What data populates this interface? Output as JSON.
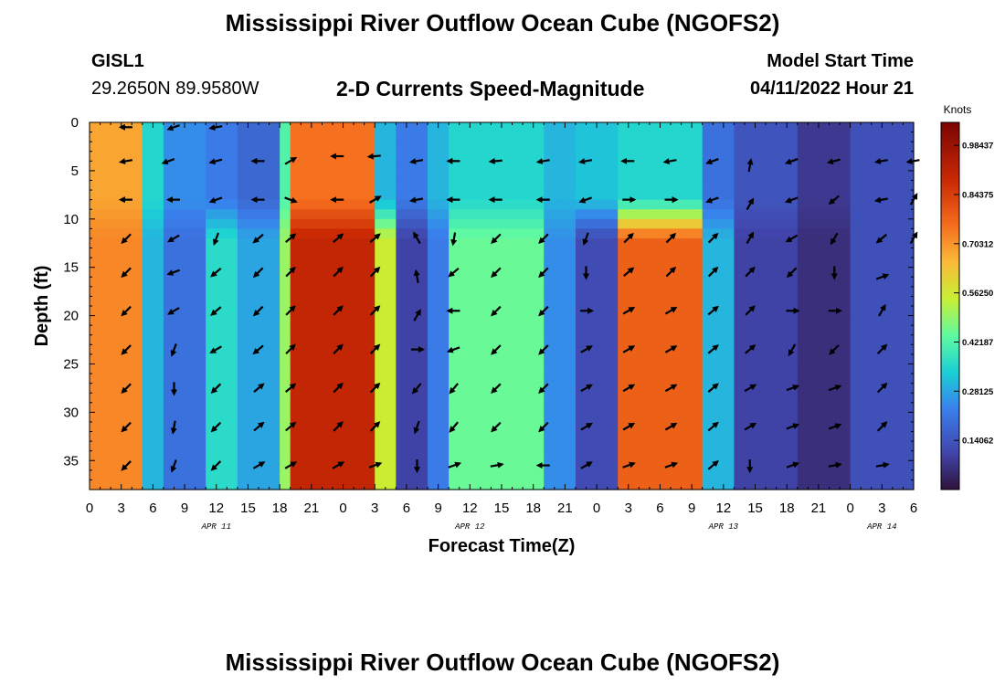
{
  "title": "Mississippi River Outflow Ocean Cube (NGOFS2)",
  "station": {
    "name": "GISL1",
    "coordinates": "29.2650N  89.9580W"
  },
  "subtitle": "2-D Currents Speed-Magnitude",
  "model_start": {
    "label": "Model Start Time",
    "value": "04/11/2022 Hour 21"
  },
  "bottom_title": "Mississippi River Outflow Ocean Cube (NGOFS2)",
  "chart_data": {
    "type": "heatmap",
    "title": "2-D Currents Speed-Magnitude",
    "xlabel": "Forecast Time(Z)",
    "ylabel": "Depth (ft)",
    "xlim": [
      0,
      78
    ],
    "ylim": [
      38,
      0
    ],
    "x_ticks": [
      {
        "h": 0,
        "label": "0"
      },
      {
        "h": 3,
        "label": "3"
      },
      {
        "h": 6,
        "label": "6"
      },
      {
        "h": 9,
        "label": "9"
      },
      {
        "h": 12,
        "label": "12"
      },
      {
        "h": 15,
        "label": "15"
      },
      {
        "h": 18,
        "label": "18"
      },
      {
        "h": 21,
        "label": "21"
      },
      {
        "h": 24,
        "label": "0"
      },
      {
        "h": 27,
        "label": "3"
      },
      {
        "h": 30,
        "label": "6"
      },
      {
        "h": 33,
        "label": "9"
      },
      {
        "h": 36,
        "label": "12"
      },
      {
        "h": 39,
        "label": "15"
      },
      {
        "h": 42,
        "label": "18"
      },
      {
        "h": 45,
        "label": "21"
      },
      {
        "h": 48,
        "label": "0"
      },
      {
        "h": 51,
        "label": "3"
      },
      {
        "h": 54,
        "label": "6"
      },
      {
        "h": 57,
        "label": "9"
      },
      {
        "h": 60,
        "label": "12"
      },
      {
        "h": 63,
        "label": "15"
      },
      {
        "h": 66,
        "label": "18"
      },
      {
        "h": 69,
        "label": "21"
      },
      {
        "h": 72,
        "label": "0"
      },
      {
        "h": 75,
        "label": "3"
      },
      {
        "h": 78,
        "label": "6"
      }
    ],
    "date_labels": [
      {
        "h": 12,
        "label": "APR 11"
      },
      {
        "h": 36,
        "label": "APR 12"
      },
      {
        "h": 60,
        "label": "APR 13"
      },
      {
        "h": 75,
        "label": "APR 14"
      }
    ],
    "y_ticks": [
      0,
      5,
      10,
      15,
      20,
      25,
      30,
      35
    ],
    "colorbar": {
      "label": "Knots",
      "range": [
        0,
        1.05
      ],
      "ticks": [
        "0.98437",
        "0.84375",
        "0.70312",
        "0.56250",
        "0.42187",
        "0.28125",
        "0.14062"
      ],
      "tick_values": [
        0.98437,
        0.84375,
        0.70312,
        0.5625,
        0.42187,
        0.28125,
        0.14062
      ]
    },
    "speed_bands": [
      {
        "h0": 0,
        "h1": 5.5,
        "deep": 0.72,
        "surf": 0.68
      },
      {
        "h0": 5.5,
        "h1": 7.5,
        "deep": 0.3,
        "surf": 0.35
      },
      {
        "h0": 7.5,
        "h1": 11,
        "deep": 0.2,
        "surf": 0.25
      },
      {
        "h0": 11,
        "h1": 14,
        "deep": 0.36,
        "surf": 0.22
      },
      {
        "h0": 14,
        "h1": 18,
        "deep": 0.28,
        "surf": 0.18
      },
      {
        "h0": 18,
        "h1": 19.5,
        "deep": 0.5,
        "surf": 0.42
      },
      {
        "h0": 19.5,
        "h1": 27.5,
        "deep": 0.9,
        "surf": 0.75
      },
      {
        "h0": 27.5,
        "h1": 29.5,
        "deep": 0.55,
        "surf": 0.3
      },
      {
        "h0": 29.5,
        "h1": 32,
        "deep": 0.1,
        "surf": 0.22
      },
      {
        "h0": 32,
        "h1": 34,
        "deep": 0.22,
        "surf": 0.3
      },
      {
        "h0": 34,
        "h1": 43,
        "deep": 0.45,
        "surf": 0.35
      },
      {
        "h0": 43,
        "h1": 46,
        "deep": 0.25,
        "surf": 0.3
      },
      {
        "h0": 46,
        "h1": 50,
        "deep": 0.12,
        "surf": 0.32
      },
      {
        "h0": 50,
        "h1": 58.5,
        "deep": 0.78,
        "surf": 0.35
      },
      {
        "h0": 58.5,
        "h1": 61,
        "deep": 0.3,
        "surf": 0.2
      },
      {
        "h0": 61,
        "h1": 67,
        "deep": 0.1,
        "surf": 0.14
      },
      {
        "h0": 67,
        "h1": 72,
        "deep": 0.06,
        "surf": 0.08
      },
      {
        "h0": 72,
        "h1": 78,
        "deep": 0.13,
        "surf": 0.13
      }
    ],
    "arrows": [
      {
        "h": 3.5,
        "d": 0.5,
        "ang": 180
      },
      {
        "h": 8,
        "d": 0.5,
        "ang": 200
      },
      {
        "h": 12,
        "d": 0.5,
        "ang": 190
      },
      {
        "h": 3.5,
        "d": 4,
        "ang": 190
      },
      {
        "h": 7.5,
        "d": 4,
        "ang": 200
      },
      {
        "h": 12,
        "d": 4,
        "ang": 195
      },
      {
        "h": 16,
        "d": 4,
        "ang": 180
      },
      {
        "h": 19,
        "d": 4,
        "ang": 30
      },
      {
        "h": 23.5,
        "d": 3.5,
        "ang": 180
      },
      {
        "h": 27,
        "d": 3.5,
        "ang": 185
      },
      {
        "h": 31,
        "d": 4,
        "ang": 190
      },
      {
        "h": 34.5,
        "d": 4,
        "ang": 180
      },
      {
        "h": 38.5,
        "d": 4,
        "ang": 185
      },
      {
        "h": 43,
        "d": 4,
        "ang": 190
      },
      {
        "h": 47,
        "d": 4,
        "ang": 190
      },
      {
        "h": 51,
        "d": 4,
        "ang": 180
      },
      {
        "h": 55,
        "d": 4,
        "ang": 190
      },
      {
        "h": 59,
        "d": 4,
        "ang": 200
      },
      {
        "h": 62.5,
        "d": 4.5,
        "ang": 80
      },
      {
        "h": 66.5,
        "d": 4,
        "ang": 200
      },
      {
        "h": 70.5,
        "d": 4,
        "ang": 195
      },
      {
        "h": 75,
        "d": 4,
        "ang": 190
      },
      {
        "h": 78,
        "d": 4,
        "ang": 190
      },
      {
        "h": 3.5,
        "d": 8,
        "ang": 180
      },
      {
        "h": 8,
        "d": 8,
        "ang": 180
      },
      {
        "h": 12,
        "d": 8,
        "ang": 200
      },
      {
        "h": 16,
        "d": 8,
        "ang": 180
      },
      {
        "h": 19,
        "d": 8,
        "ang": 340
      },
      {
        "h": 23.5,
        "d": 8,
        "ang": 180
      },
      {
        "h": 27,
        "d": 8,
        "ang": 30
      },
      {
        "h": 31,
        "d": 8,
        "ang": 190
      },
      {
        "h": 34.5,
        "d": 8,
        "ang": 180
      },
      {
        "h": 38.5,
        "d": 8,
        "ang": 180
      },
      {
        "h": 43,
        "d": 8,
        "ang": 180
      },
      {
        "h": 47,
        "d": 8,
        "ang": 200
      },
      {
        "h": 51,
        "d": 8,
        "ang": 0
      },
      {
        "h": 55,
        "d": 8,
        "ang": 0
      },
      {
        "h": 59,
        "d": 8,
        "ang": 200
      },
      {
        "h": 62.5,
        "d": 8.5,
        "ang": 60
      },
      {
        "h": 66.5,
        "d": 8,
        "ang": 200
      },
      {
        "h": 70.5,
        "d": 8,
        "ang": 220
      },
      {
        "h": 75,
        "d": 8,
        "ang": 190
      },
      {
        "h": 78,
        "d": 8,
        "ang": 60
      },
      {
        "h": 3.5,
        "d": 12,
        "ang": 225
      },
      {
        "h": 8,
        "d": 12,
        "ang": 210
      },
      {
        "h": 12,
        "d": 12,
        "ang": 250
      },
      {
        "h": 16,
        "d": 12,
        "ang": 220
      },
      {
        "h": 19,
        "d": 12,
        "ang": 40
      },
      {
        "h": 23.5,
        "d": 12,
        "ang": 40
      },
      {
        "h": 27,
        "d": 12,
        "ang": 40
      },
      {
        "h": 31,
        "d": 12,
        "ang": 120
      },
      {
        "h": 34.5,
        "d": 12,
        "ang": 260
      },
      {
        "h": 38.5,
        "d": 12,
        "ang": 225
      },
      {
        "h": 43,
        "d": 12,
        "ang": 225
      },
      {
        "h": 47,
        "d": 12,
        "ang": 250
      },
      {
        "h": 51,
        "d": 12,
        "ang": 45
      },
      {
        "h": 55,
        "d": 12,
        "ang": 45
      },
      {
        "h": 59,
        "d": 12,
        "ang": 45
      },
      {
        "h": 62.5,
        "d": 12,
        "ang": 60
      },
      {
        "h": 66.5,
        "d": 12,
        "ang": 210
      },
      {
        "h": 70.5,
        "d": 12,
        "ang": 240
      },
      {
        "h": 75,
        "d": 12,
        "ang": 220
      },
      {
        "h": 78,
        "d": 12,
        "ang": 60
      },
      {
        "h": 3.5,
        "d": 15.5,
        "ang": 225
      },
      {
        "h": 8,
        "d": 15.5,
        "ang": 200
      },
      {
        "h": 12,
        "d": 15.5,
        "ang": 220
      },
      {
        "h": 16,
        "d": 15.5,
        "ang": 225
      },
      {
        "h": 19,
        "d": 15.5,
        "ang": 45
      },
      {
        "h": 23.5,
        "d": 15.5,
        "ang": 45
      },
      {
        "h": 27,
        "d": 15.5,
        "ang": 45
      },
      {
        "h": 31,
        "d": 16,
        "ang": 100
      },
      {
        "h": 34.5,
        "d": 15.5,
        "ang": 220
      },
      {
        "h": 38.5,
        "d": 15.5,
        "ang": 225
      },
      {
        "h": 43,
        "d": 15.5,
        "ang": 225
      },
      {
        "h": 47,
        "d": 15.5,
        "ang": 270
      },
      {
        "h": 51,
        "d": 15.5,
        "ang": 40
      },
      {
        "h": 55,
        "d": 15.5,
        "ang": 45
      },
      {
        "h": 59,
        "d": 15.5,
        "ang": 45
      },
      {
        "h": 62.5,
        "d": 15.5,
        "ang": 45
      },
      {
        "h": 66.5,
        "d": 15.5,
        "ang": 225
      },
      {
        "h": 70.5,
        "d": 15.5,
        "ang": 270
      },
      {
        "h": 75,
        "d": 16,
        "ang": 20
      },
      {
        "h": 3.5,
        "d": 19.5,
        "ang": 225
      },
      {
        "h": 8,
        "d": 19.5,
        "ang": 210
      },
      {
        "h": 12,
        "d": 19.5,
        "ang": 220
      },
      {
        "h": 16,
        "d": 19.5,
        "ang": 225
      },
      {
        "h": 19,
        "d": 19.5,
        "ang": 45
      },
      {
        "h": 23.5,
        "d": 19.5,
        "ang": 45
      },
      {
        "h": 27,
        "d": 19.5,
        "ang": 45
      },
      {
        "h": 31,
        "d": 20,
        "ang": 60
      },
      {
        "h": 34.5,
        "d": 19.5,
        "ang": 180
      },
      {
        "h": 38.5,
        "d": 19.5,
        "ang": 225
      },
      {
        "h": 43,
        "d": 19.5,
        "ang": 225
      },
      {
        "h": 47,
        "d": 19.5,
        "ang": 0
      },
      {
        "h": 51,
        "d": 19.5,
        "ang": 30
      },
      {
        "h": 55,
        "d": 19.5,
        "ang": 30
      },
      {
        "h": 59,
        "d": 19.5,
        "ang": 40
      },
      {
        "h": 62.5,
        "d": 19.5,
        "ang": 45
      },
      {
        "h": 66.5,
        "d": 19.5,
        "ang": 0
      },
      {
        "h": 70.5,
        "d": 19.5,
        "ang": 0
      },
      {
        "h": 75,
        "d": 19.5,
        "ang": 60
      },
      {
        "h": 3.5,
        "d": 23.5,
        "ang": 225
      },
      {
        "h": 8,
        "d": 23.5,
        "ang": 250
      },
      {
        "h": 12,
        "d": 23.5,
        "ang": 210
      },
      {
        "h": 16,
        "d": 23.5,
        "ang": 220
      },
      {
        "h": 19,
        "d": 23.5,
        "ang": 45
      },
      {
        "h": 23.5,
        "d": 23.5,
        "ang": 45
      },
      {
        "h": 27,
        "d": 23.5,
        "ang": 45
      },
      {
        "h": 31,
        "d": 23.5,
        "ang": 0
      },
      {
        "h": 34.5,
        "d": 23.5,
        "ang": 200
      },
      {
        "h": 38.5,
        "d": 23.5,
        "ang": 225
      },
      {
        "h": 43,
        "d": 23.5,
        "ang": 225
      },
      {
        "h": 47,
        "d": 23.5,
        "ang": 30
      },
      {
        "h": 51,
        "d": 23.5,
        "ang": 30
      },
      {
        "h": 55,
        "d": 23.5,
        "ang": 30
      },
      {
        "h": 59,
        "d": 23.5,
        "ang": 40
      },
      {
        "h": 62.5,
        "d": 23.5,
        "ang": 40
      },
      {
        "h": 66.5,
        "d": 23.5,
        "ang": 240
      },
      {
        "h": 70.5,
        "d": 23.5,
        "ang": 225
      },
      {
        "h": 75,
        "d": 23.5,
        "ang": 45
      },
      {
        "h": 3.5,
        "d": 27.5,
        "ang": 225
      },
      {
        "h": 8,
        "d": 27.5,
        "ang": 270
      },
      {
        "h": 12,
        "d": 27.5,
        "ang": 225
      },
      {
        "h": 16,
        "d": 27.5,
        "ang": 40
      },
      {
        "h": 19,
        "d": 27.5,
        "ang": 40
      },
      {
        "h": 23.5,
        "d": 27.5,
        "ang": 45
      },
      {
        "h": 27,
        "d": 27.5,
        "ang": 45
      },
      {
        "h": 31,
        "d": 27.5,
        "ang": 230
      },
      {
        "h": 34.5,
        "d": 27.5,
        "ang": 230
      },
      {
        "h": 38.5,
        "d": 27.5,
        "ang": 225
      },
      {
        "h": 43,
        "d": 27.5,
        "ang": 225
      },
      {
        "h": 47,
        "d": 27.5,
        "ang": 30
      },
      {
        "h": 51,
        "d": 27.5,
        "ang": 30
      },
      {
        "h": 55,
        "d": 27.5,
        "ang": 30
      },
      {
        "h": 59,
        "d": 27.5,
        "ang": 40
      },
      {
        "h": 62.5,
        "d": 27.5,
        "ang": 30
      },
      {
        "h": 66.5,
        "d": 27.5,
        "ang": 20
      },
      {
        "h": 70.5,
        "d": 27.5,
        "ang": 20
      },
      {
        "h": 75,
        "d": 27.5,
        "ang": 45
      },
      {
        "h": 3.5,
        "d": 31.5,
        "ang": 225
      },
      {
        "h": 8,
        "d": 31.5,
        "ang": 260
      },
      {
        "h": 12,
        "d": 31.5,
        "ang": 225
      },
      {
        "h": 16,
        "d": 31.5,
        "ang": 40
      },
      {
        "h": 19,
        "d": 31.5,
        "ang": 40
      },
      {
        "h": 23.5,
        "d": 31.5,
        "ang": 45
      },
      {
        "h": 27,
        "d": 31.5,
        "ang": 45
      },
      {
        "h": 31,
        "d": 31.5,
        "ang": 250
      },
      {
        "h": 34.5,
        "d": 31.5,
        "ang": 230
      },
      {
        "h": 38.5,
        "d": 31.5,
        "ang": 225
      },
      {
        "h": 43,
        "d": 31.5,
        "ang": 225
      },
      {
        "h": 47,
        "d": 31.5,
        "ang": 30
      },
      {
        "h": 51,
        "d": 31.5,
        "ang": 30
      },
      {
        "h": 55,
        "d": 31.5,
        "ang": 30
      },
      {
        "h": 59,
        "d": 31.5,
        "ang": 40
      },
      {
        "h": 62.5,
        "d": 31.5,
        "ang": 30
      },
      {
        "h": 66.5,
        "d": 31.5,
        "ang": 20
      },
      {
        "h": 70.5,
        "d": 31.5,
        "ang": 20
      },
      {
        "h": 75,
        "d": 31.5,
        "ang": 45
      },
      {
        "h": 3.5,
        "d": 35.5,
        "ang": 225
      },
      {
        "h": 8,
        "d": 35.5,
        "ang": 250
      },
      {
        "h": 12,
        "d": 35.5,
        "ang": 225
      },
      {
        "h": 16,
        "d": 35.5,
        "ang": 30
      },
      {
        "h": 19,
        "d": 35.5,
        "ang": 30
      },
      {
        "h": 23.5,
        "d": 35.5,
        "ang": 30
      },
      {
        "h": 27,
        "d": 35.5,
        "ang": 20
      },
      {
        "h": 31,
        "d": 35.5,
        "ang": 270
      },
      {
        "h": 34.5,
        "d": 35.5,
        "ang": 20
      },
      {
        "h": 38.5,
        "d": 35.5,
        "ang": 10
      },
      {
        "h": 43,
        "d": 35.5,
        "ang": 180
      },
      {
        "h": 47,
        "d": 35.5,
        "ang": 30
      },
      {
        "h": 51,
        "d": 35.5,
        "ang": 20
      },
      {
        "h": 55,
        "d": 35.5,
        "ang": 20
      },
      {
        "h": 59,
        "d": 35.5,
        "ang": 40
      },
      {
        "h": 62.5,
        "d": 35.5,
        "ang": 270
      },
      {
        "h": 66.5,
        "d": 35.5,
        "ang": 20
      },
      {
        "h": 70.5,
        "d": 35.5,
        "ang": 10
      },
      {
        "h": 75,
        "d": 35.5,
        "ang": 10
      }
    ]
  }
}
